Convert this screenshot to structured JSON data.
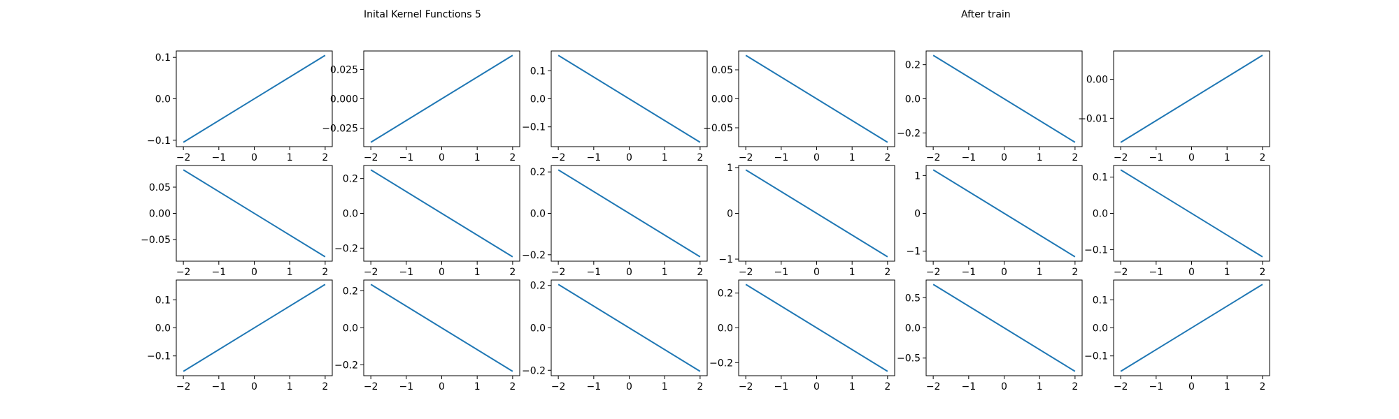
{
  "figure": {
    "title_left": "Inital Kernel Functions 5",
    "title_right": "After train",
    "line_color": "#1f77b4"
  },
  "chart_data": [
    {
      "type": "line",
      "x": [
        -2,
        2
      ],
      "y": [
        -0.105,
        0.105
      ],
      "xlim": [
        -2.2,
        2.2
      ],
      "ylim": [
        -0.1155,
        0.1155
      ],
      "xticks": [
        -2,
        -1,
        0,
        1,
        2
      ],
      "xtick_labels": [
        "−2",
        "−1",
        "0",
        "1",
        "2"
      ],
      "yticks": [
        -0.1,
        0.0,
        0.1
      ],
      "ytick_labels": [
        "−0.1",
        "0.0",
        "0.1"
      ]
    },
    {
      "type": "line",
      "x": [
        -2,
        2
      ],
      "y": [
        -0.037,
        0.037
      ],
      "xlim": [
        -2.2,
        2.2
      ],
      "ylim": [
        -0.0407,
        0.0407
      ],
      "xticks": [
        -2,
        -1,
        0,
        1,
        2
      ],
      "xtick_labels": [
        "−2",
        "−1",
        "0",
        "1",
        "2"
      ],
      "yticks": [
        -0.025,
        0.0,
        0.025
      ],
      "ytick_labels": [
        "−0.025",
        "0.000",
        "0.025"
      ]
    },
    {
      "type": "line",
      "x": [
        -2,
        2
      ],
      "y": [
        0.155,
        -0.155
      ],
      "xlim": [
        -2.2,
        2.2
      ],
      "ylim": [
        -0.1705,
        0.1705
      ],
      "xticks": [
        -2,
        -1,
        0,
        1,
        2
      ],
      "xtick_labels": [
        "−2",
        "−1",
        "0",
        "1",
        "2"
      ],
      "yticks": [
        -0.1,
        0.0,
        0.1
      ],
      "ytick_labels": [
        "−0.1",
        "0.0",
        "0.1"
      ]
    },
    {
      "type": "line",
      "x": [
        -2,
        2
      ],
      "y": [
        0.075,
        -0.075
      ],
      "xlim": [
        -2.2,
        2.2
      ],
      "ylim": [
        -0.0825,
        0.0825
      ],
      "xticks": [
        -2,
        -1,
        0,
        1,
        2
      ],
      "xtick_labels": [
        "−2",
        "−1",
        "0",
        "1",
        "2"
      ],
      "yticks": [
        -0.05,
        0.0,
        0.05
      ],
      "ytick_labels": [
        "−0.05",
        "0.00",
        "0.05"
      ]
    },
    {
      "type": "line",
      "x": [
        -2,
        2
      ],
      "y": [
        0.255,
        -0.255
      ],
      "xlim": [
        -2.2,
        2.2
      ],
      "ylim": [
        -0.2805,
        0.2805
      ],
      "xticks": [
        -2,
        -1,
        0,
        1,
        2
      ],
      "xtick_labels": [
        "−2",
        "−1",
        "0",
        "1",
        "2"
      ],
      "yticks": [
        -0.2,
        0.0,
        0.2
      ],
      "ytick_labels": [
        "−0.2",
        "0.0",
        "0.2"
      ]
    },
    {
      "type": "line",
      "x": [
        -2,
        2
      ],
      "y": [
        -0.0162,
        0.0062
      ],
      "xlim": [
        -2.2,
        2.2
      ],
      "ylim": [
        -0.0173,
        0.0073
      ],
      "xticks": [
        -2,
        -1,
        0,
        1,
        2
      ],
      "xtick_labels": [
        "−2",
        "−1",
        "0",
        "1",
        "2"
      ],
      "yticks": [
        -0.01,
        0.0
      ],
      "ytick_labels": [
        "−0.01",
        "0.00"
      ]
    },
    {
      "type": "line",
      "x": [
        -2,
        2
      ],
      "y": [
        0.083,
        -0.083
      ],
      "xlim": [
        -2.2,
        2.2
      ],
      "ylim": [
        -0.0913,
        0.0913
      ],
      "xticks": [
        -2,
        -1,
        0,
        1,
        2
      ],
      "xtick_labels": [
        "−2",
        "−1",
        "0",
        "1",
        "2"
      ],
      "yticks": [
        -0.05,
        0.0,
        0.05
      ],
      "ytick_labels": [
        "−0.05",
        "0.00",
        "0.05"
      ]
    },
    {
      "type": "line",
      "x": [
        -2,
        2
      ],
      "y": [
        0.25,
        -0.25
      ],
      "xlim": [
        -2.2,
        2.2
      ],
      "ylim": [
        -0.275,
        0.275
      ],
      "xticks": [
        -2,
        -1,
        0,
        1,
        2
      ],
      "xtick_labels": [
        "−2",
        "−1",
        "0",
        "1",
        "2"
      ],
      "yticks": [
        -0.2,
        0.0,
        0.2
      ],
      "ytick_labels": [
        "−0.2",
        "0.0",
        "0.2"
      ]
    },
    {
      "type": "line",
      "x": [
        -2,
        2
      ],
      "y": [
        0.21,
        -0.21
      ],
      "xlim": [
        -2.2,
        2.2
      ],
      "ylim": [
        -0.231,
        0.231
      ],
      "xticks": [
        -2,
        -1,
        0,
        1,
        2
      ],
      "xtick_labels": [
        "−2",
        "−1",
        "0",
        "1",
        "2"
      ],
      "yticks": [
        -0.2,
        0.0,
        0.2
      ],
      "ytick_labels": [
        "−0.2",
        "0.0",
        "0.2"
      ]
    },
    {
      "type": "line",
      "x": [
        -2,
        2
      ],
      "y": [
        0.95,
        -0.95
      ],
      "xlim": [
        -2.2,
        2.2
      ],
      "ylim": [
        -1.045,
        1.045
      ],
      "xticks": [
        -2,
        -1,
        0,
        1,
        2
      ],
      "xtick_labels": [
        "−2",
        "−1",
        "0",
        "1",
        "2"
      ],
      "yticks": [
        -1,
        0,
        1
      ],
      "ytick_labels": [
        "−1",
        "0",
        "1"
      ]
    },
    {
      "type": "line",
      "x": [
        -2,
        2
      ],
      "y": [
        1.15,
        -1.15
      ],
      "xlim": [
        -2.2,
        2.2
      ],
      "ylim": [
        -1.265,
        1.265
      ],
      "xticks": [
        -2,
        -1,
        0,
        1,
        2
      ],
      "xtick_labels": [
        "−2",
        "−1",
        "0",
        "1",
        "2"
      ],
      "yticks": [
        -1,
        0,
        1
      ],
      "ytick_labels": [
        "−1",
        "0",
        "1"
      ]
    },
    {
      "type": "line",
      "x": [
        -2,
        2
      ],
      "y": [
        0.12,
        -0.12
      ],
      "xlim": [
        -2.2,
        2.2
      ],
      "ylim": [
        -0.132,
        0.132
      ],
      "xticks": [
        -2,
        -1,
        0,
        1,
        2
      ],
      "xtick_labels": [
        "−2",
        "−1",
        "0",
        "1",
        "2"
      ],
      "yticks": [
        -0.1,
        0.0,
        0.1
      ],
      "ytick_labels": [
        "−0.1",
        "0.0",
        "0.1"
      ]
    },
    {
      "type": "line",
      "x": [
        -2,
        2
      ],
      "y": [
        -0.155,
        0.155
      ],
      "xlim": [
        -2.2,
        2.2
      ],
      "ylim": [
        -0.1705,
        0.1705
      ],
      "xticks": [
        -2,
        -1,
        0,
        1,
        2
      ],
      "xtick_labels": [
        "−2",
        "−1",
        "0",
        "1",
        "2"
      ],
      "yticks": [
        -0.1,
        0.0,
        0.1
      ],
      "ytick_labels": [
        "−0.1",
        "0.0",
        "0.1"
      ]
    },
    {
      "type": "line",
      "x": [
        -2,
        2
      ],
      "y": [
        0.235,
        -0.235
      ],
      "xlim": [
        -2.2,
        2.2
      ],
      "ylim": [
        -0.2585,
        0.2585
      ],
      "xticks": [
        -2,
        -1,
        0,
        1,
        2
      ],
      "xtick_labels": [
        "−2",
        "−1",
        "0",
        "1",
        "2"
      ],
      "yticks": [
        -0.2,
        0.0,
        0.2
      ],
      "ytick_labels": [
        "−0.2",
        "0.0",
        "0.2"
      ]
    },
    {
      "type": "line",
      "x": [
        -2,
        2
      ],
      "y": [
        0.205,
        -0.205
      ],
      "xlim": [
        -2.2,
        2.2
      ],
      "ylim": [
        -0.2255,
        0.2255
      ],
      "xticks": [
        -2,
        -1,
        0,
        1,
        2
      ],
      "xtick_labels": [
        "−2",
        "−1",
        "0",
        "1",
        "2"
      ],
      "yticks": [
        -0.2,
        0.0,
        0.2
      ],
      "ytick_labels": [
        "−0.2",
        "0.0",
        "0.2"
      ]
    },
    {
      "type": "line",
      "x": [
        -2,
        2
      ],
      "y": [
        0.25,
        -0.25
      ],
      "xlim": [
        -2.2,
        2.2
      ],
      "ylim": [
        -0.275,
        0.275
      ],
      "xticks": [
        -2,
        -1,
        0,
        1,
        2
      ],
      "xtick_labels": [
        "−2",
        "−1",
        "0",
        "1",
        "2"
      ],
      "yticks": [
        -0.2,
        0.0,
        0.2
      ],
      "ytick_labels": [
        "−0.2",
        "0.0",
        "0.2"
      ]
    },
    {
      "type": "line",
      "x": [
        -2,
        2
      ],
      "y": [
        0.72,
        -0.72
      ],
      "xlim": [
        -2.2,
        2.2
      ],
      "ylim": [
        -0.792,
        0.792
      ],
      "xticks": [
        -2,
        -1,
        0,
        1,
        2
      ],
      "xtick_labels": [
        "−2",
        "−1",
        "0",
        "1",
        "2"
      ],
      "yticks": [
        -0.5,
        0.0,
        0.5
      ],
      "ytick_labels": [
        "−0.5",
        "0.0",
        "0.5"
      ]
    },
    {
      "type": "line",
      "x": [
        -2,
        2
      ],
      "y": [
        -0.155,
        0.155
      ],
      "xlim": [
        -2.2,
        2.2
      ],
      "ylim": [
        -0.1705,
        0.1705
      ],
      "xticks": [
        -2,
        -1,
        0,
        1,
        2
      ],
      "xtick_labels": [
        "−2",
        "−1",
        "0",
        "1",
        "2"
      ],
      "yticks": [
        -0.1,
        0.0,
        0.1
      ],
      "ytick_labels": [
        "−0.1",
        "0.0",
        "0.1"
      ]
    }
  ]
}
